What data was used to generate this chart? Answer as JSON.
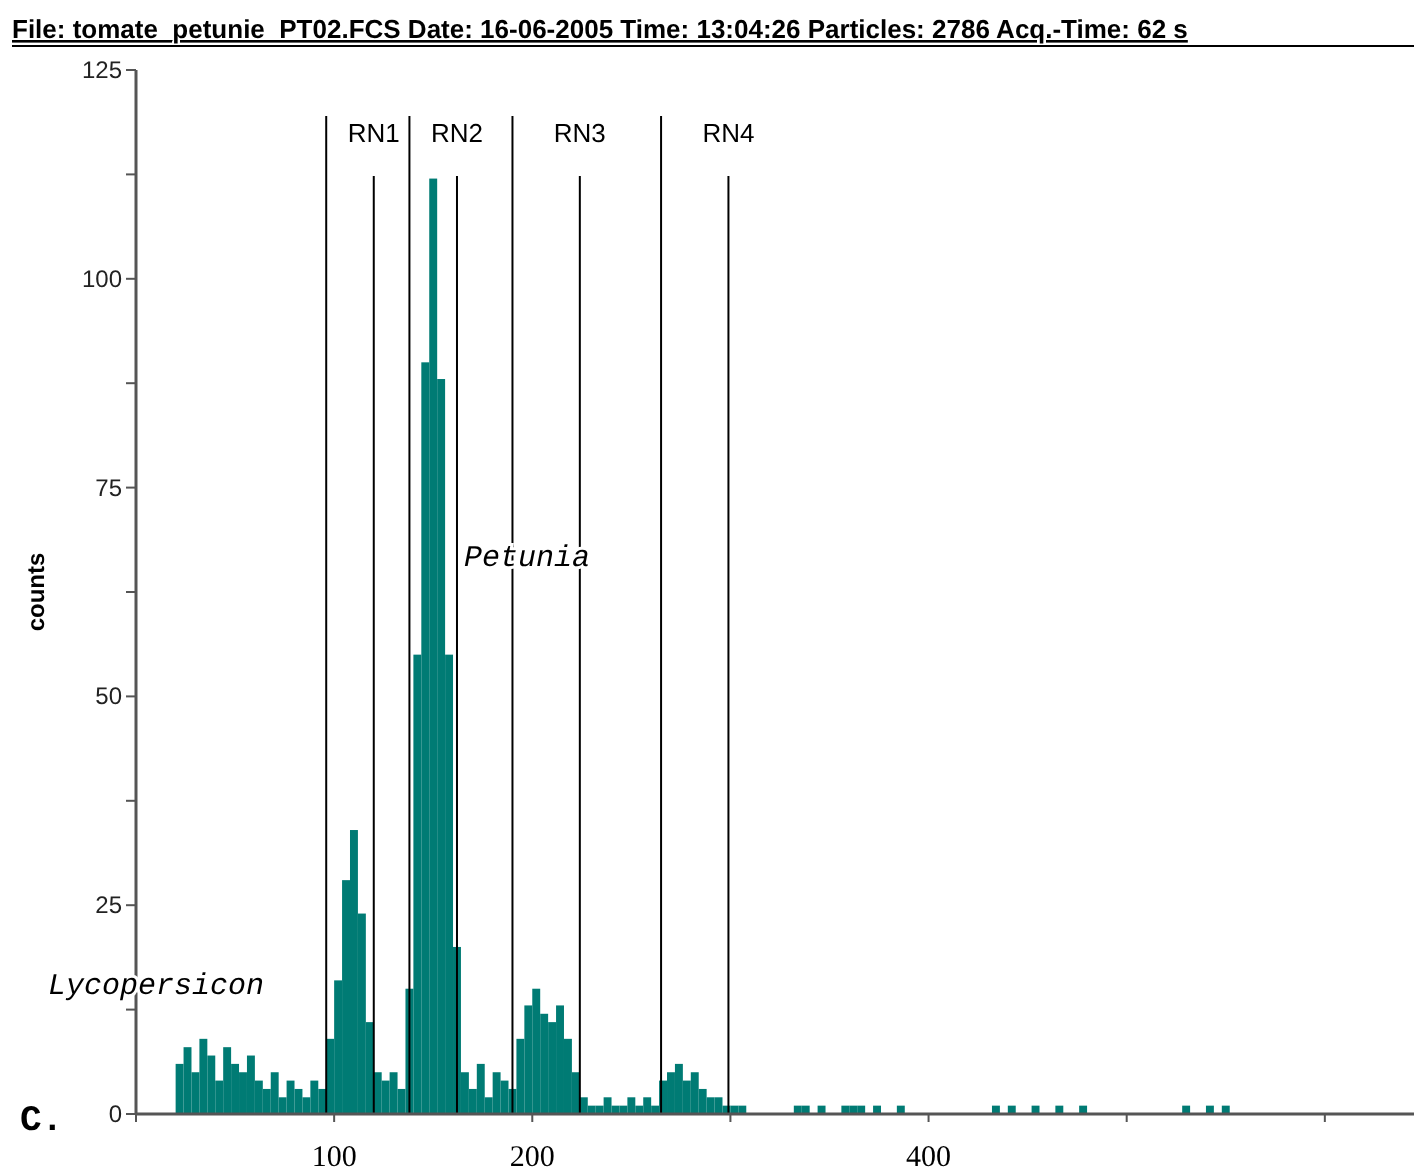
{
  "chart_data": {
    "type": "histogram",
    "title": "File: tomate_petunie_PT02.FCS   Date: 16-06-2005   Time: 13:04:26   Particles: 2786   Acq.-Time: 62 s",
    "ylabel": "counts",
    "color": "#007b74",
    "bins": [
      20,
      24,
      28,
      32,
      36,
      40,
      44,
      48,
      52,
      56,
      60,
      64,
      68,
      72,
      76,
      80,
      84,
      88,
      92,
      96,
      100,
      104,
      108,
      112,
      116,
      120,
      124,
      128,
      132,
      136,
      140,
      144,
      148,
      152,
      156,
      160,
      164,
      168,
      172,
      176,
      180,
      184,
      188,
      192,
      196,
      200,
      204,
      208,
      212,
      216,
      220,
      224,
      228,
      232,
      236,
      240,
      244,
      248,
      252,
      256,
      260,
      264,
      268,
      272,
      276,
      280,
      284,
      288,
      292,
      296,
      300,
      304,
      308,
      312,
      316,
      320,
      324,
      328,
      332,
      336,
      340,
      344,
      348,
      352,
      356,
      360,
      364,
      368,
      372,
      376,
      380,
      384,
      388,
      392,
      396,
      400,
      404,
      408,
      412,
      416,
      420,
      424,
      428,
      432,
      436,
      440,
      444,
      448,
      452,
      456,
      460,
      464,
      468,
      472,
      476,
      480,
      484,
      488,
      492,
      496,
      500,
      504,
      508,
      512,
      516,
      520,
      524,
      528,
      532,
      536,
      540,
      544,
      548,
      552,
      556
    ],
    "values": [
      6,
      8,
      5,
      9,
      7,
      4,
      8,
      6,
      5,
      7,
      4,
      3,
      5,
      2,
      4,
      3,
      2,
      4,
      3,
      9,
      16,
      28,
      34,
      24,
      11,
      5,
      4,
      5,
      3,
      15,
      55,
      90,
      112,
      88,
      55,
      20,
      5,
      3,
      6,
      2,
      5,
      4,
      3,
      9,
      13,
      15,
      12,
      11,
      13,
      9,
      5,
      2,
      1,
      1,
      2,
      1,
      1,
      2,
      1,
      2,
      1,
      4,
      5,
      6,
      4,
      5,
      3,
      2,
      2,
      1,
      1,
      1,
      0,
      0,
      0,
      0,
      0,
      0,
      1,
      1,
      0,
      1,
      0,
      0,
      1,
      1,
      1,
      0,
      1,
      0,
      0,
      1,
      0,
      0,
      0,
      0,
      0,
      0,
      0,
      0,
      0,
      0,
      0,
      1,
      0,
      1,
      0,
      0,
      1,
      0,
      0,
      1,
      0,
      0,
      1,
      0,
      0,
      0,
      0,
      0,
      0,
      0,
      0,
      0,
      0,
      0,
      0,
      1,
      0,
      0,
      1,
      0,
      1,
      0
    ],
    "xlim": [
      0,
      645
    ],
    "xticks": [
      {
        "value": 0,
        "label": null
      },
      100,
      200,
      {
        "value": 300,
        "label": null
      },
      400,
      {
        "value": 500,
        "label": null
      },
      {
        "value": 600,
        "label": null
      }
    ],
    "ylim": [
      0,
      125
    ],
    "yticks": [
      0,
      {
        "value": 12.5,
        "label": null
      },
      25,
      {
        "value": 37.5,
        "label": null
      },
      50,
      {
        "value": 62.5,
        "label": null
      },
      75,
      {
        "value": 87.5,
        "label": null
      },
      100,
      {
        "value": 112.5,
        "label": null
      },
      125
    ],
    "ref_lines": [
      {
        "axis": "x",
        "value": 96,
        "label": null,
        "color": "#000000"
      },
      {
        "axis": "x",
        "value": 120,
        "label": "RN1",
        "color": "#000000"
      },
      {
        "axis": "x",
        "value": 138,
        "label": null,
        "color": "#000000"
      },
      {
        "axis": "x",
        "value": 162,
        "label": "RN2",
        "color": "#000000"
      },
      {
        "axis": "x",
        "value": 190,
        "label": null,
        "color": "#000000"
      },
      {
        "axis": "x",
        "value": 224,
        "label": "RN3",
        "color": "#000000"
      },
      {
        "axis": "x",
        "value": 265,
        "label": null,
        "color": "#000000"
      },
      {
        "axis": "x",
        "value": 299,
        "label": "RN4",
        "color": "#000000"
      }
    ],
    "annotations": [
      "Lycopersicon",
      "Petunia",
      "C."
    ],
    "grid": false
  }
}
